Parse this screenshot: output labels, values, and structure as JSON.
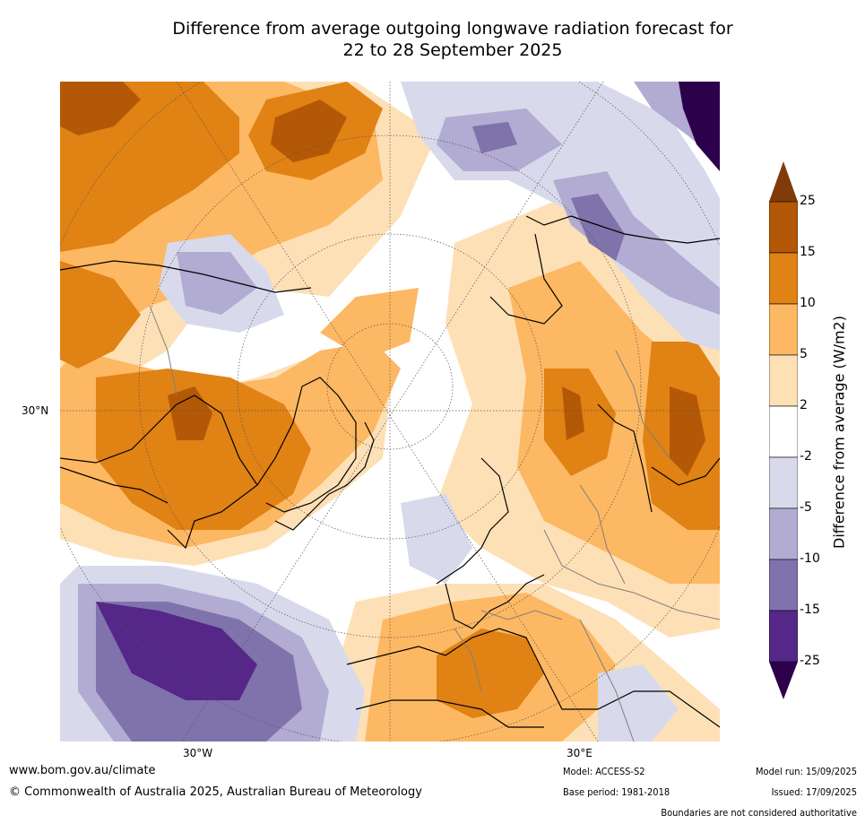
{
  "title": {
    "line1": "Difference from average outgoing longwave radiation forecast for",
    "line2": "22 to 28 September 2025"
  },
  "map": {
    "labels": {
      "lat30n": "30°N",
      "lon30w": "30°W",
      "lon30e": "30°E"
    }
  },
  "colorbar": {
    "title": "Difference from average (W/m2)",
    "ticks": [
      "25",
      "15",
      "10",
      "5",
      "2",
      "-2",
      "-5",
      "-10",
      "-15",
      "-25"
    ],
    "colors": {
      "above_25": "#7f3b08",
      "15_25": "#b35806",
      "10_15": "#e08214",
      "5_10": "#fdb863",
      "2_5": "#fee0b6",
      "neutral": "#ffffff",
      "m2_m5": "#d8daeb",
      "m5_m10": "#b2abd2",
      "m10_m15": "#8073ac",
      "m15_m25": "#542788",
      "below_m25": "#2d004b"
    }
  },
  "footer": {
    "website": "www.bom.gov.au/climate",
    "copyright": "© Commonwealth of Australia 2025, Australian Bureau of Meteorology",
    "model": "Model: ACCESS-S2",
    "base_period": "Base period: 1981-2018",
    "model_run": "Model run: 15/09/2025",
    "issued": "Issued: 17/09/2025",
    "disclaimer": "Boundaries are not considered authoritative"
  }
}
